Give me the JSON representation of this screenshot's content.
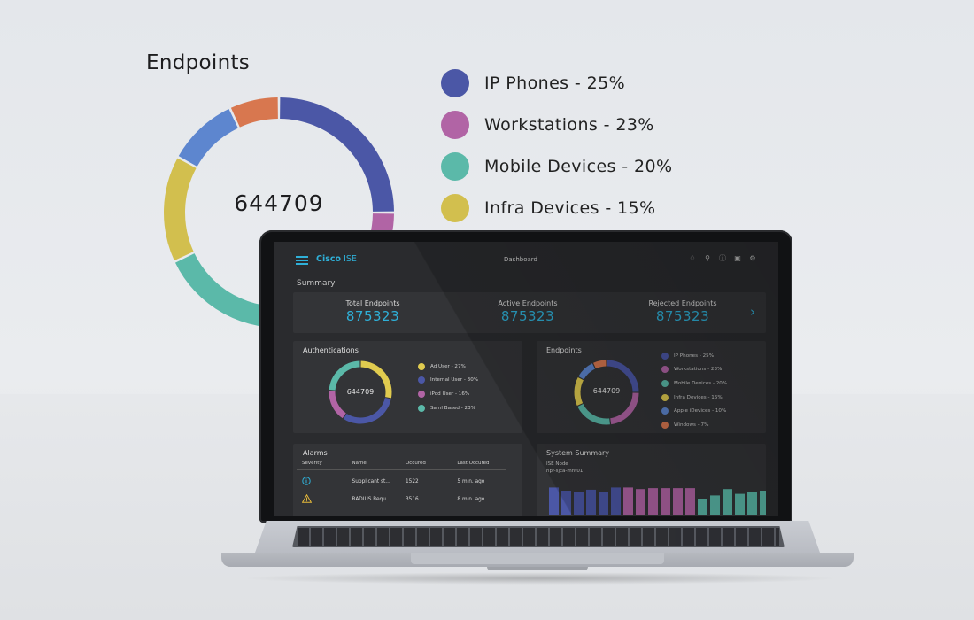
{
  "hero": {
    "title": "Endpoints",
    "total": "644709",
    "segments": [
      {
        "label": "IP Phones - 25%",
        "value": 25,
        "color": "#4b57a6"
      },
      {
        "label": "Workstations - 23%",
        "value": 23,
        "color": "#b164a5"
      },
      {
        "label": "Mobile Devices - 20%",
        "value": 20,
        "color": "#5bb9a9"
      },
      {
        "label": "Infra Devices - 15%",
        "value": 15,
        "color": "#d2bf4e"
      },
      {
        "label": "",
        "value": 10,
        "color": "#5d86cf"
      },
      {
        "label": "",
        "value": 7,
        "color": "#d8774f"
      }
    ]
  },
  "app": {
    "brand_bold": "Cisco",
    "brand_rest": " ISE",
    "page_title": "Dashboard",
    "icons": [
      "bell-icon",
      "search-icon",
      "info-icon",
      "image-icon",
      "gear-icon"
    ]
  },
  "summary": {
    "label": "Summary",
    "stats": [
      {
        "title": "Total Endpoints",
        "value": "875323"
      },
      {
        "title": "Active Endpoints",
        "value": "875323"
      },
      {
        "title": "Rejected Endpoints",
        "value": "875323"
      }
    ]
  },
  "authentications": {
    "title": "Authentications",
    "total": "644709",
    "segments": [
      {
        "label": "Ad User - 27%",
        "value": 27,
        "color": "#e0cb4f"
      },
      {
        "label": "Internal User - 30%",
        "value": 30,
        "color": "#4b57a6"
      },
      {
        "label": "iPod User - 16%",
        "value": 16,
        "color": "#b164a5"
      },
      {
        "label": "Saml Based - 23%",
        "value": 23,
        "color": "#5bb9a9"
      }
    ]
  },
  "endpoints": {
    "title": "Endpoints",
    "total": "644709",
    "segments": [
      {
        "label": "IP Phones - 25%",
        "value": 25,
        "color": "#4b57a6"
      },
      {
        "label": "Workstations - 23%",
        "value": 23,
        "color": "#b164a5"
      },
      {
        "label": "Mobile Devices - 20%",
        "value": 20,
        "color": "#5bb9a9"
      },
      {
        "label": "Infra Devices - 15%",
        "value": 15,
        "color": "#e0cb4f"
      },
      {
        "label": "Apple iDevices - 10%",
        "value": 10,
        "color": "#5d86cf"
      },
      {
        "label": "Windows - 7%",
        "value": 7,
        "color": "#d8774f"
      }
    ]
  },
  "alarms": {
    "title": "Alarms",
    "columns": [
      "Severity",
      "Name",
      "Occured",
      "Last Occured"
    ],
    "rows": [
      {
        "severity_icon": "info-icon",
        "name": "Supplicant st...",
        "occured": "1522",
        "last": "5 min. ago"
      },
      {
        "severity_icon": "warning-icon",
        "name": "RADIUS Requ...",
        "occured": "3516",
        "last": "8 min. ago"
      }
    ]
  },
  "system_summary": {
    "title": "System Summary",
    "node_label": "ISE Node",
    "node_name": "npf-sjca-mnt01",
    "groups": [
      {
        "color": "#4b57a6",
        "values": [
          0.85,
          0.75,
          0.7,
          0.78,
          0.7,
          0.85
        ]
      },
      {
        "color": "#b164a5",
        "values": [
          0.85,
          0.8,
          0.83,
          0.83,
          0.83,
          0.83
        ]
      },
      {
        "color": "#5bb9a9",
        "values": [
          0.5,
          0.6,
          0.8,
          0.65,
          0.72,
          0.75
        ]
      }
    ]
  }
}
